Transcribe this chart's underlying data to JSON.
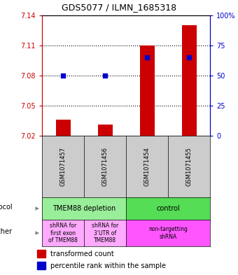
{
  "title": "GDS5077 / ILMN_1685318",
  "samples": [
    "GSM1071457",
    "GSM1071456",
    "GSM1071454",
    "GSM1071455"
  ],
  "transformed_counts": [
    7.036,
    7.031,
    7.11,
    7.13
  ],
  "percentile_ranks": [
    50,
    50,
    65,
    65
  ],
  "ylim_left": [
    7.02,
    7.14
  ],
  "ylim_right": [
    0,
    100
  ],
  "yticks_left": [
    7.02,
    7.05,
    7.08,
    7.11,
    7.14
  ],
  "yticks_right": [
    0,
    25,
    50,
    75,
    100
  ],
  "bar_color": "#cc0000",
  "dot_color": "#0000cc",
  "bar_width": 0.35,
  "dot_size": 20,
  "protocol_labels": [
    "TMEM88 depletion",
    "control"
  ],
  "protocol_colors": [
    "#99ee99",
    "#55dd55"
  ],
  "other_labels": [
    "shRNA for\nfirst exon\nof TMEM88",
    "shRNA for\n3'UTR of\nTMEM88",
    "non-targetting\nshRNA"
  ],
  "other_colors": [
    "#ffaaff",
    "#ffaaff",
    "#ff55ff"
  ],
  "legend_red": "transformed count",
  "legend_blue": "percentile rank within the sample",
  "background_color": "#ffffff",
  "plot_bg": "#ffffff",
  "axis_left_color": "#cc0000",
  "axis_right_color": "#0000cc",
  "sample_box_color": "#cccccc",
  "gridline_color": "#000000"
}
